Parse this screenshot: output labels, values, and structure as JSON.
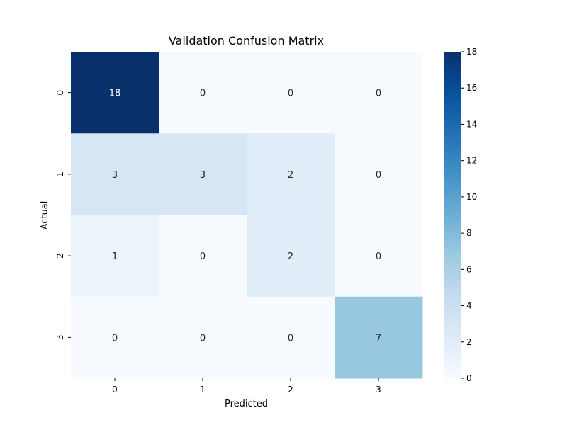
{
  "chart_data": {
    "type": "heatmap",
    "title": "Validation Confusion Matrix",
    "xlabel": "Predicted",
    "ylabel": "Actual",
    "x_categories": [
      "0",
      "1",
      "2",
      "3"
    ],
    "y_categories": [
      "0",
      "1",
      "2",
      "3"
    ],
    "values": [
      [
        18,
        0,
        0,
        0
      ],
      [
        3,
        3,
        2,
        0
      ],
      [
        1,
        0,
        2,
        0
      ],
      [
        0,
        0,
        0,
        7
      ]
    ],
    "colorbar": {
      "min": 0,
      "max": 18,
      "ticks": [
        "0",
        "2",
        "4",
        "6",
        "8",
        "10",
        "12",
        "14",
        "16",
        "18"
      ],
      "colormap": "Blues"
    },
    "grid": false
  }
}
